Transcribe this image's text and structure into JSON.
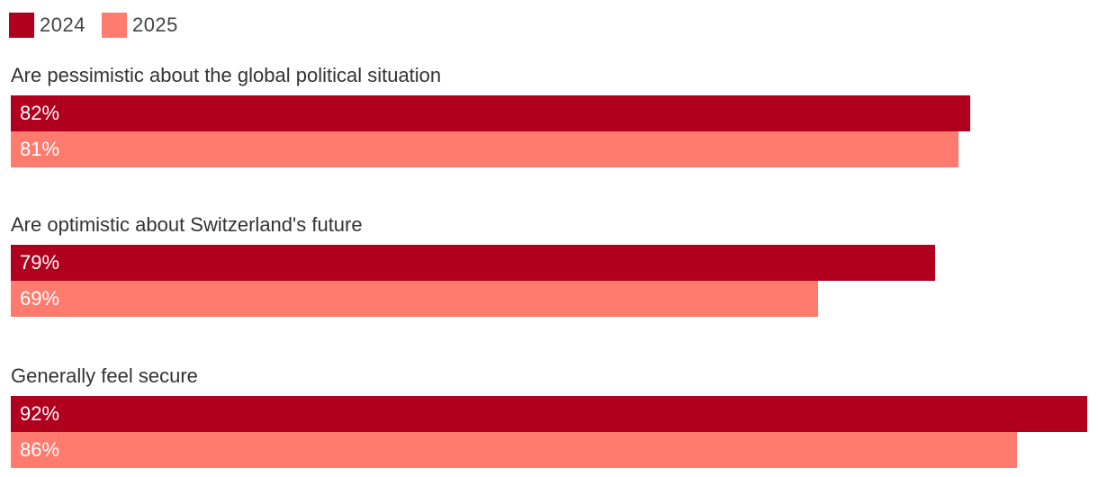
{
  "legend": [
    {
      "label": "2024",
      "color": "#b0001e"
    },
    {
      "label": "2025",
      "color": "#ff7b6e"
    }
  ],
  "chart_data": {
    "type": "bar",
    "orientation": "horizontal",
    "categories": [
      "Are pessimistic about the global political situation",
      "Are optimistic about Switzerland's future",
      "Generally feel secure"
    ],
    "series": [
      {
        "name": "2024",
        "color": "#b0001e",
        "values": [
          82,
          79,
          92
        ],
        "labels": [
          "82%",
          "79%",
          "92%"
        ]
      },
      {
        "name": "2025",
        "color": "#ff7b6e",
        "values": [
          81,
          69,
          86
        ],
        "labels": [
          "81%",
          "69%",
          "86%"
        ]
      }
    ],
    "xlim": [
      0,
      92
    ],
    "unit": "%",
    "legend_position": "top-left",
    "grid": false
  }
}
